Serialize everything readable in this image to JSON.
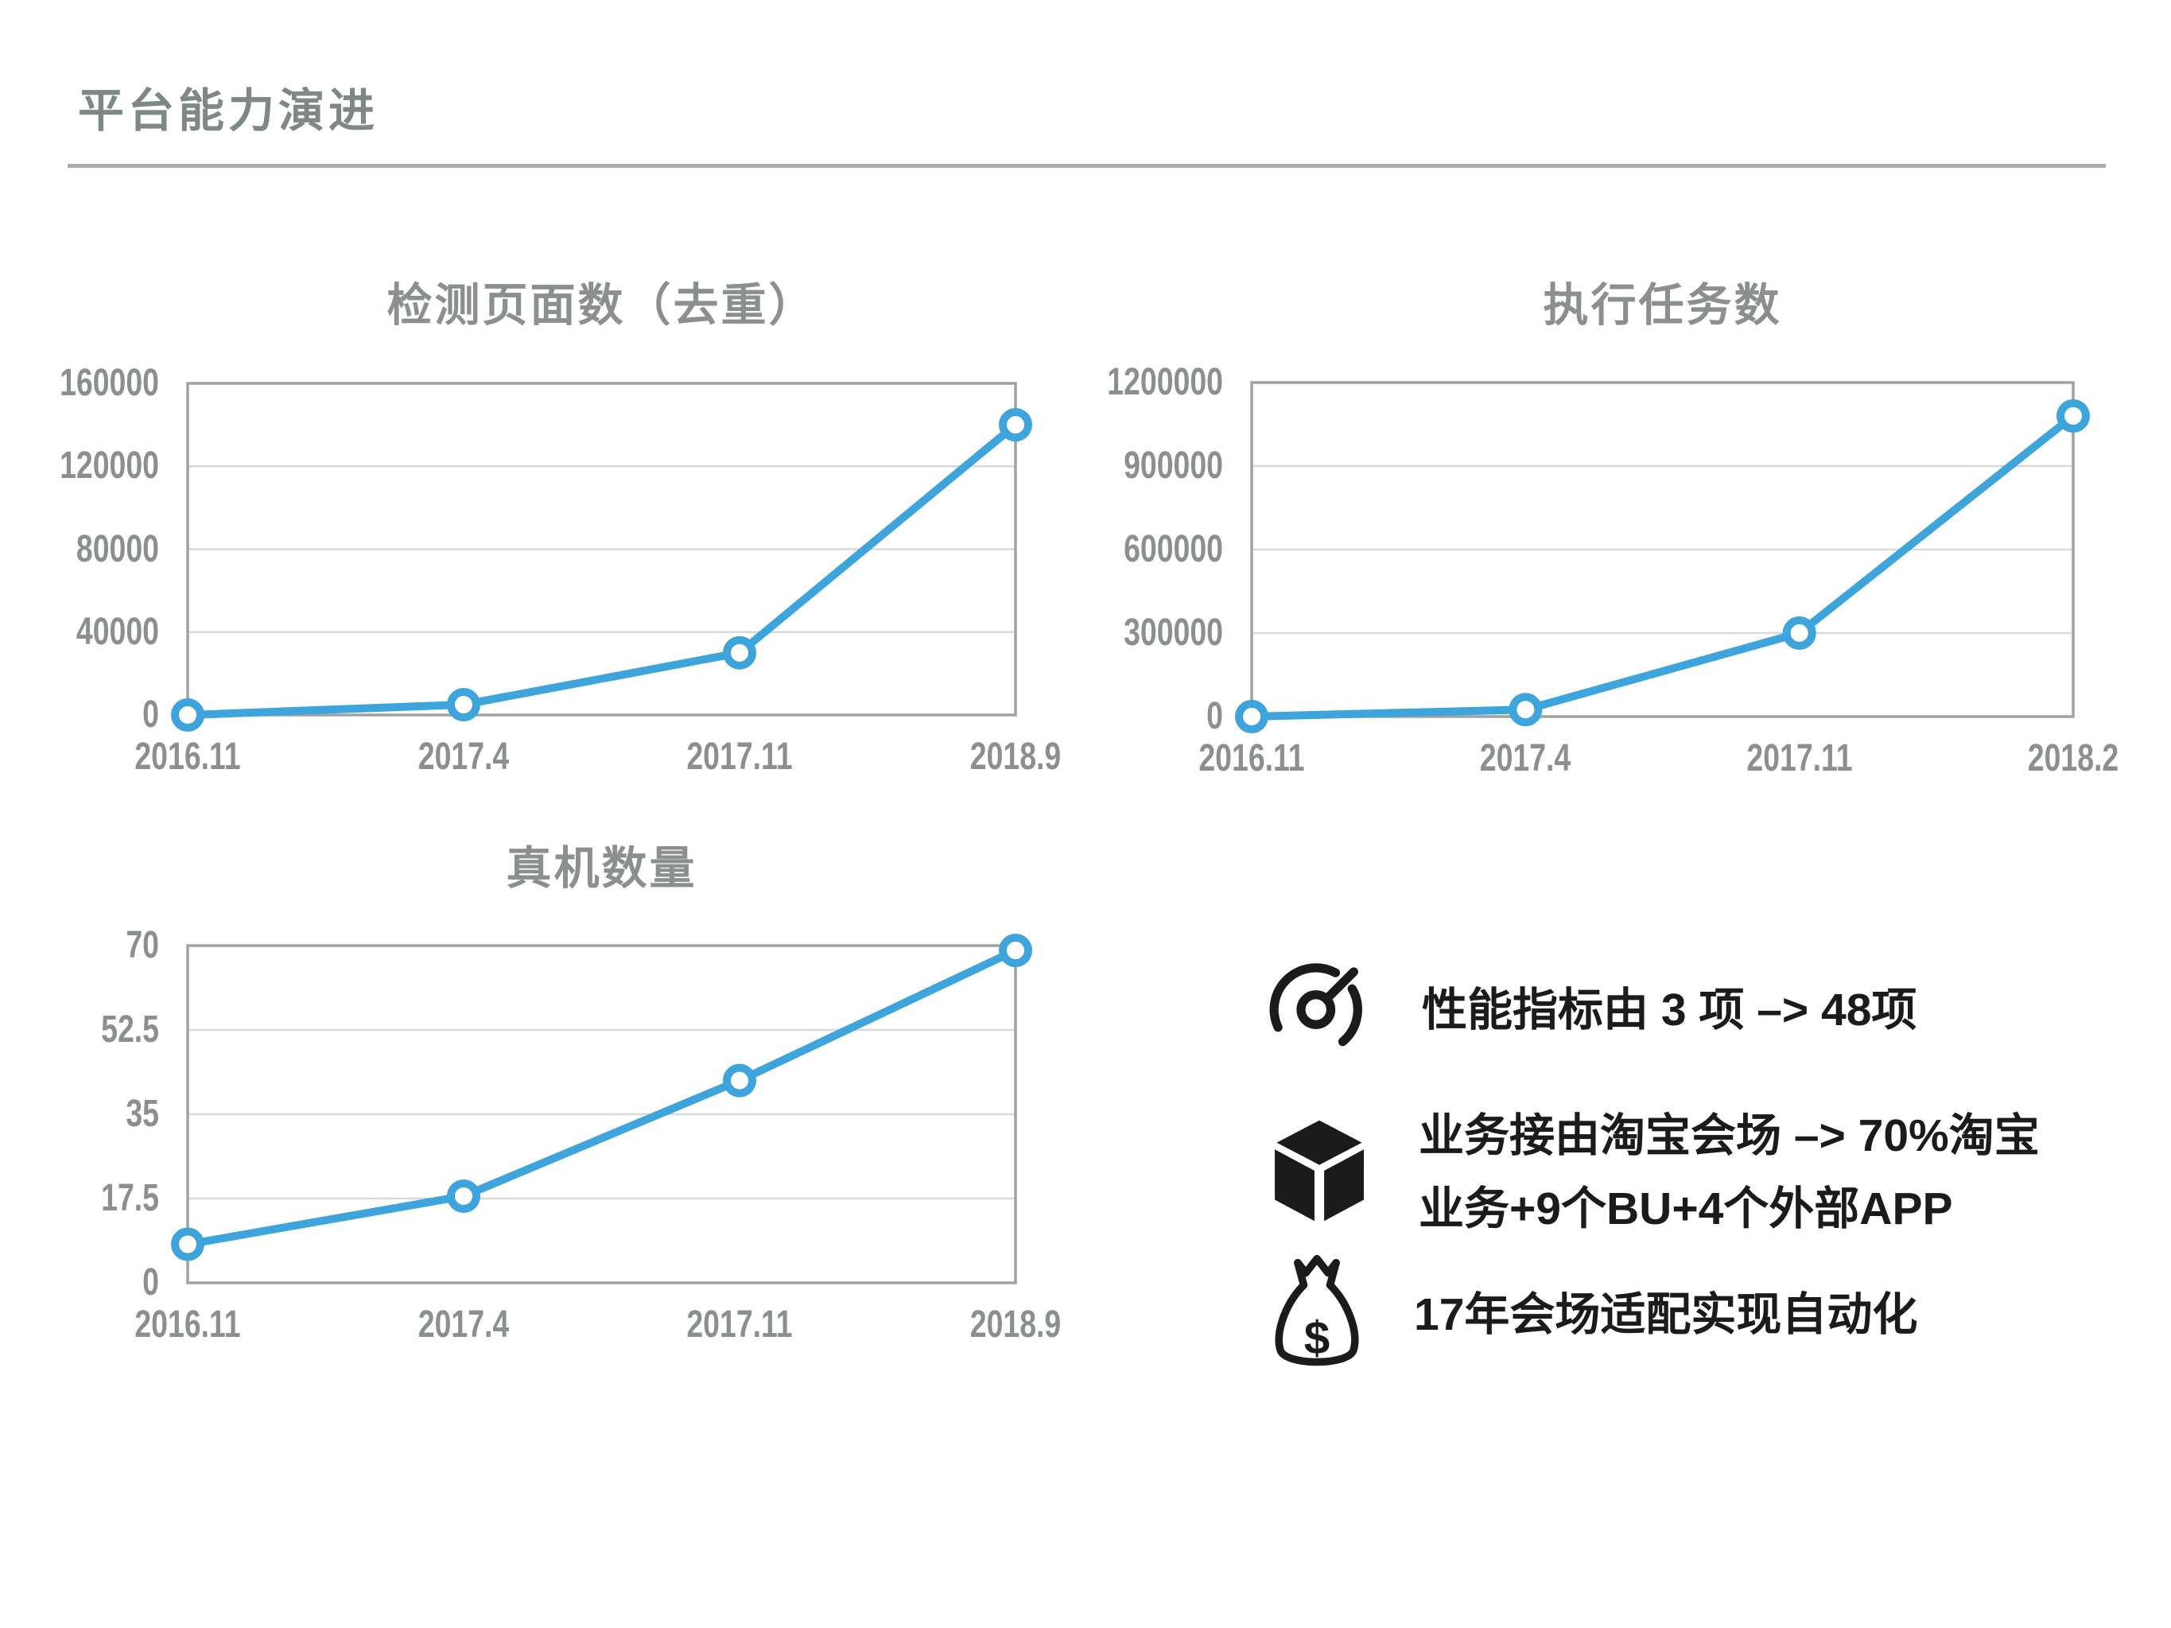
{
  "page": {
    "title": "平台能力演进"
  },
  "theme": {
    "accent_blue": "#3EA4DC",
    "gray_text": "#8B908E",
    "header_gray": "#7E8884",
    "rule_gray": "#ABABAB",
    "grid_gray": "#D8DAD9",
    "border_gray": "#9FA3A1",
    "ink_black": "#1B1B1B"
  },
  "chart_data": [
    {
      "type": "line",
      "title": "检测页面数（去重）",
      "categories": [
        "2016.11",
        "2017.4",
        "2017.11",
        "2018.9"
      ],
      "values": [
        0,
        5000,
        30000,
        140000
      ],
      "xlabel": "",
      "ylabel": "",
      "ylim": [
        0,
        160000
      ],
      "ytick_labels": [
        "0",
        "40000",
        "80000",
        "120000",
        "160000"
      ],
      "grid": true,
      "legend": false,
      "marker": "open-circle"
    },
    {
      "type": "line",
      "title": "执行任务数",
      "categories": [
        "2016.11",
        "2017.4",
        "2017.11",
        "2018.2"
      ],
      "values": [
        0,
        25000,
        300000,
        1080000
      ],
      "xlabel": "",
      "ylabel": "",
      "ylim": [
        0,
        1200000
      ],
      "ytick_labels": [
        "0",
        "300000",
        "600000",
        "900000",
        "1200000"
      ],
      "grid": true,
      "legend": false,
      "marker": "open-circle"
    },
    {
      "type": "line",
      "title": "真机数量",
      "categories": [
        "2016.11",
        "2017.4",
        "2017.11",
        "2018.9"
      ],
      "values": [
        8,
        18,
        42,
        69
      ],
      "xlabel": "",
      "ylabel": "",
      "ylim": [
        0,
        70
      ],
      "ytick_labels": [
        "0",
        "17.5",
        "35",
        "52.5",
        "70"
      ],
      "grid": true,
      "legend": false,
      "marker": "open-circle"
    }
  ],
  "annotations": [
    {
      "icon": "gauge-icon",
      "lines": [
        "性能指标由 3 项  –>  48项"
      ]
    },
    {
      "icon": "cube-icon",
      "lines": [
        "业务接由淘宝会场 –> 70%淘宝",
        "业务+9个BU+4个外部APP"
      ]
    },
    {
      "icon": "money-bag-icon",
      "lines": [
        "17年会场适配实现自动化"
      ]
    }
  ],
  "icons": {
    "money_bag_symbol": "$"
  }
}
